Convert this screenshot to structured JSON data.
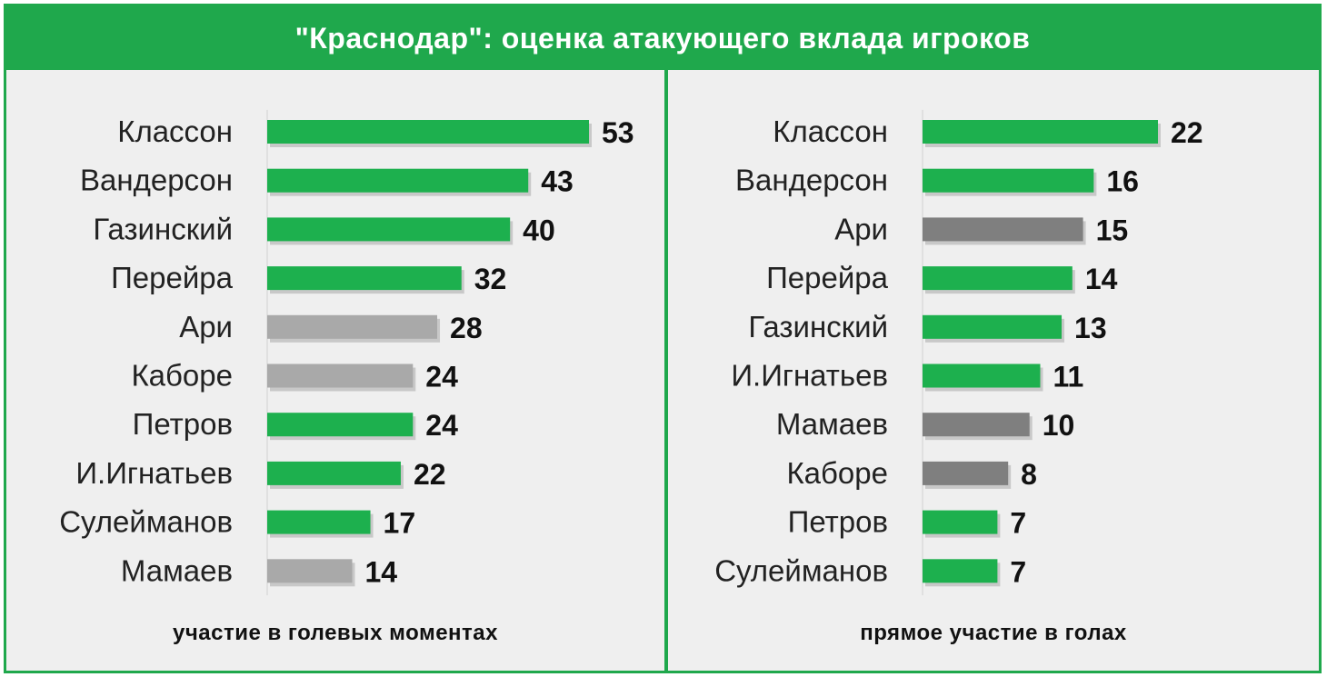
{
  "title": "\"Краснодар\": оценка атакующего вклада игроков",
  "colors": {
    "frame": "#1fa84c",
    "bar_green": "#1db04e",
    "bar_gray_light": "#a9a9a9",
    "bar_gray_dark": "#7f7f7f"
  },
  "chart_data": [
    {
      "type": "bar",
      "orientation": "horizontal",
      "xlabel": "участие в голевых моментах",
      "categories": [
        "Классон",
        "Вандерсон",
        "Газинский",
        "Перейра",
        "Ари",
        "Каборе",
        "Петров",
        "И.Игнатьев",
        "Сулейманов",
        "Мамаев"
      ],
      "values": [
        53,
        43,
        40,
        32,
        28,
        24,
        24,
        22,
        17,
        14
      ],
      "bar_colors": [
        "green",
        "green",
        "green",
        "green",
        "gray_light",
        "gray_light",
        "green",
        "green",
        "green",
        "gray_light"
      ],
      "xlim": [
        0,
        53
      ]
    },
    {
      "type": "bar",
      "orientation": "horizontal",
      "xlabel": "прямое участие в голах",
      "categories": [
        "Классон",
        "Вандерсон",
        "Ари",
        "Перейра",
        "Газинский",
        "И.Игнатьев",
        "Мамаев",
        "Каборе",
        "Петров",
        "Сулейманов"
      ],
      "values": [
        22,
        16,
        15,
        14,
        13,
        11,
        10,
        8,
        7,
        7
      ],
      "bar_colors": [
        "green",
        "green",
        "gray_dark",
        "green",
        "green",
        "green",
        "gray_dark",
        "gray_dark",
        "green",
        "green"
      ],
      "xlim": [
        0,
        22
      ]
    }
  ]
}
